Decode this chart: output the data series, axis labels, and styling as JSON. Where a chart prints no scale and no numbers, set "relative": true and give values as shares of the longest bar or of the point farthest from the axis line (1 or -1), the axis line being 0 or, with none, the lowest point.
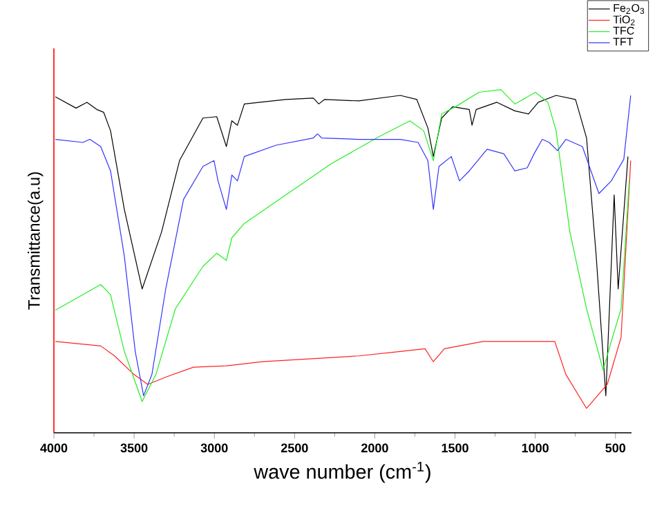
{
  "chart_data": {
    "type": "line",
    "relative": true,
    "xlabel": "wave number (cm$^{-1}$)",
    "ylabel": "Transmittance(a.u)",
    "xlim": [
      4000,
      400
    ],
    "xticks": [
      4000,
      3500,
      3000,
      2500,
      2000,
      1500,
      1000,
      500
    ],
    "legend": "top right",
    "marker": "none",
    "line_style": "solid",
    "series": [
      {
        "name": "Fe$_{2}$O$_{3}$",
        "color": "#000000",
        "x": [
          3991,
          3862,
          3794,
          3733,
          3690,
          3647,
          3561,
          3450,
          3329,
          3217,
          3071,
          2985,
          2925,
          2891,
          2856,
          2813,
          2555,
          2383,
          2349,
          2314,
          2099,
          1841,
          1738,
          1669,
          1635,
          1583,
          1515,
          1411,
          1394,
          1368,
          1239,
          1127,
          1042,
          981,
          870,
          749,
          680,
          620,
          560,
          508,
          483,
          422
        ],
        "values": [
          0.979,
          0.946,
          0.963,
          0.942,
          0.934,
          0.88,
          0.651,
          0.419,
          0.585,
          0.793,
          0.917,
          0.921,
          0.834,
          0.909,
          0.896,
          0.958,
          0.971,
          0.975,
          0.958,
          0.971,
          0.967,
          0.983,
          0.971,
          0.888,
          0.805,
          0.917,
          0.95,
          0.942,
          0.896,
          0.942,
          0.963,
          0.938,
          0.929,
          0.963,
          0.983,
          0.971,
          0.859,
          0.515,
          0.108,
          0.693,
          0.419,
          0.805
        ]
      },
      {
        "name": "TiO$_{2}$",
        "color": "#ff2020",
        "x": [
          3991,
          3708,
          3622,
          3501,
          3415,
          3303,
          3131,
          2925,
          2701,
          2099,
          1841,
          1687,
          1635,
          1566,
          1325,
          878,
          809,
          680,
          551,
          465,
          405
        ],
        "values": [
          0.266,
          0.253,
          0.224,
          0.17,
          0.141,
          0.162,
          0.191,
          0.195,
          0.207,
          0.224,
          0.237,
          0.245,
          0.207,
          0.245,
          0.266,
          0.266,
          0.17,
          0.071,
          0.141,
          0.278,
          0.793
        ]
      },
      {
        "name": "TFC",
        "color": "#22ee22",
        "x": [
          3991,
          3708,
          3647,
          3561,
          3450,
          3364,
          3243,
          3071,
          2985,
          2925,
          2891,
          2813,
          2555,
          2271,
          1988,
          1781,
          1695,
          1635,
          1583,
          1497,
          1351,
          1214,
          1127,
          999,
          921,
          870,
          784,
          680,
          577,
          526,
          465,
          414
        ],
        "values": [
          0.357,
          0.432,
          0.402,
          0.237,
          0.091,
          0.17,
          0.361,
          0.485,
          0.523,
          0.502,
          0.568,
          0.61,
          0.693,
          0.784,
          0.859,
          0.909,
          0.88,
          0.793,
          0.929,
          0.95,
          0.992,
          1.0,
          0.958,
          0.992,
          0.963,
          0.88,
          0.585,
          0.361,
          0.183,
          0.266,
          0.361,
          0.734
        ]
      },
      {
        "name": "TFT",
        "color": "#3333ff",
        "x": [
          3991,
          3819,
          3776,
          3708,
          3647,
          3561,
          3493,
          3441,
          3389,
          3303,
          3192,
          3071,
          3002,
          2977,
          2925,
          2891,
          2856,
          2813,
          2615,
          2383,
          2357,
          2331,
          2099,
          1841,
          1730,
          1669,
          1635,
          1600,
          1523,
          1472,
          1411,
          1300,
          1196,
          1127,
          1050,
          1007,
          956,
          913,
          861,
          809,
          706,
          603,
          526,
          448,
          405
        ],
        "values": [
          0.855,
          0.846,
          0.855,
          0.834,
          0.763,
          0.515,
          0.237,
          0.108,
          0.17,
          0.419,
          0.68,
          0.776,
          0.793,
          0.734,
          0.651,
          0.751,
          0.734,
          0.805,
          0.838,
          0.859,
          0.871,
          0.859,
          0.855,
          0.855,
          0.846,
          0.793,
          0.651,
          0.776,
          0.805,
          0.734,
          0.763,
          0.826,
          0.813,
          0.763,
          0.772,
          0.813,
          0.855,
          0.846,
          0.822,
          0.855,
          0.834,
          0.697,
          0.734,
          0.797,
          0.983
        ]
      }
    ]
  }
}
